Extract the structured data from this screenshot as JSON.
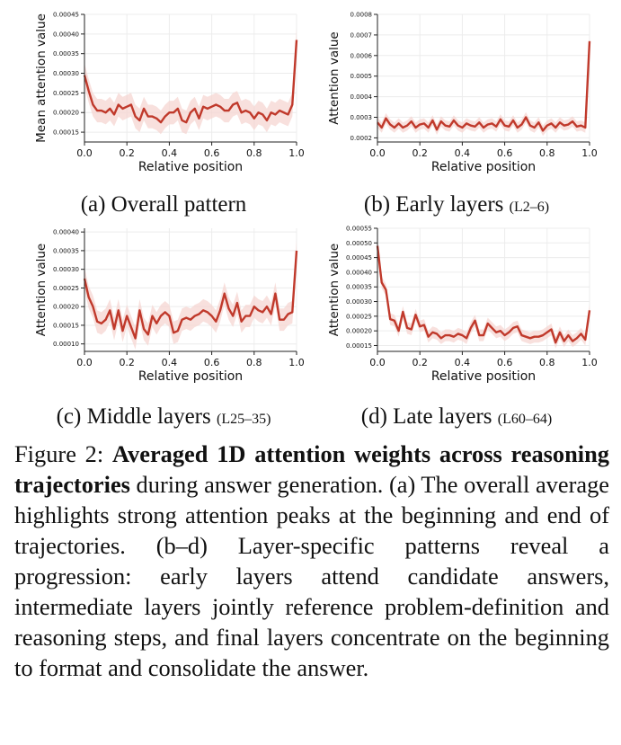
{
  "panels": [
    {
      "id": "a",
      "caption": "(a) Overall pattern",
      "caption_range": "",
      "chart_data": {
        "type": "line",
        "ylabel": "Mean attention value",
        "xlabel": "Relative position",
        "xlim": [
          0.0,
          1.0
        ],
        "ylim": [
          0.000125,
          0.00045
        ],
        "xticks": [
          "0.0",
          "0.2",
          "0.4",
          "0.6",
          "0.8",
          "1.0"
        ],
        "yticks": [
          "0.00015",
          "0.00020",
          "0.00025",
          "0.00030",
          "0.00035",
          "0.00040",
          "0.00045"
        ],
        "ytick_values": [
          0.00015,
          0.0002,
          0.00025,
          0.0003,
          0.00035,
          0.0004,
          0.00045
        ],
        "grid": true,
        "color": "#c0392b",
        "band_color": "#f6d5d2",
        "series": [
          {
            "x": [
              0.0,
              0.02,
              0.04,
              0.06,
              0.08,
              0.1,
              0.12,
              0.14,
              0.16,
              0.18,
              0.2,
              0.22,
              0.24,
              0.26,
              0.28,
              0.3,
              0.32,
              0.34,
              0.36,
              0.38,
              0.4,
              0.42,
              0.44,
              0.46,
              0.48,
              0.5,
              0.52,
              0.54,
              0.56,
              0.58,
              0.6,
              0.62,
              0.64,
              0.66,
              0.68,
              0.7,
              0.72,
              0.74,
              0.76,
              0.78,
              0.8,
              0.82,
              0.84,
              0.86,
              0.88,
              0.9,
              0.92,
              0.94,
              0.96,
              0.98,
              1.0
            ],
            "y": [
              0.000295,
              0.000255,
              0.00022,
              0.000205,
              0.000205,
              0.0002,
              0.00021,
              0.000195,
              0.00022,
              0.00021,
              0.000215,
              0.00022,
              0.00019,
              0.00018,
              0.00021,
              0.00019,
              0.00019,
              0.000185,
              0.000175,
              0.00019,
              0.0002,
              0.0002,
              0.00021,
              0.00018,
              0.000175,
              0.0002,
              0.00021,
              0.000185,
              0.000215,
              0.00021,
              0.000215,
              0.00022,
              0.000215,
              0.000205,
              0.000205,
              0.00022,
              0.000225,
              0.0002,
              0.000205,
              0.0002,
              0.000185,
              0.0002,
              0.000195,
              0.00018,
              0.0002,
              0.000195,
              0.000205,
              0.0002,
              0.000195,
              0.00022,
              0.000385
            ],
            "spread": 3e-05
          }
        ]
      }
    },
    {
      "id": "b",
      "caption": "(b) Early layers",
      "caption_range": "(L2–6)",
      "chart_data": {
        "type": "line",
        "ylabel": "Attention value",
        "xlabel": "Relative position",
        "xlim": [
          0.0,
          1.0
        ],
        "ylim": [
          0.00018,
          0.0008
        ],
        "xticks": [
          "0.0",
          "0.2",
          "0.4",
          "0.6",
          "0.8",
          "1.0"
        ],
        "yticks": [
          "0.0002",
          "0.0003",
          "0.0004",
          "0.0005",
          "0.0006",
          "0.0007",
          "0.0008"
        ],
        "ytick_values": [
          0.0002,
          0.0003,
          0.0004,
          0.0005,
          0.0006,
          0.0007,
          0.0008
        ],
        "grid": true,
        "color": "#c0392b",
        "band_color": "#f6d5d2",
        "series": [
          {
            "x": [
              0.0,
              0.02,
              0.04,
              0.06,
              0.08,
              0.1,
              0.12,
              0.14,
              0.16,
              0.18,
              0.2,
              0.22,
              0.24,
              0.26,
              0.28,
              0.3,
              0.32,
              0.34,
              0.36,
              0.38,
              0.4,
              0.42,
              0.44,
              0.46,
              0.48,
              0.5,
              0.52,
              0.54,
              0.56,
              0.58,
              0.6,
              0.62,
              0.64,
              0.66,
              0.68,
              0.7,
              0.72,
              0.74,
              0.76,
              0.78,
              0.8,
              0.82,
              0.84,
              0.86,
              0.88,
              0.9,
              0.92,
              0.94,
              0.96,
              0.98,
              1.0
            ],
            "y": [
              0.000275,
              0.00025,
              0.000295,
              0.000265,
              0.00025,
              0.00027,
              0.00025,
              0.00026,
              0.00028,
              0.00025,
              0.000265,
              0.00027,
              0.00025,
              0.000285,
              0.00024,
              0.00028,
              0.00026,
              0.000255,
              0.000285,
              0.00026,
              0.00025,
              0.00027,
              0.00026,
              0.000255,
              0.000275,
              0.00025,
              0.000265,
              0.00027,
              0.000255,
              0.00029,
              0.00026,
              0.000255,
              0.000285,
              0.00025,
              0.000265,
              0.0003,
              0.00026,
              0.00025,
              0.000275,
              0.000235,
              0.00026,
              0.00027,
              0.00025,
              0.000275,
              0.00026,
              0.000265,
              0.00028,
              0.000255,
              0.00026,
              0.00025,
              0.00067
            ],
            "spread": 2.5e-05
          }
        ]
      }
    },
    {
      "id": "c",
      "caption": "(c) Middle layers",
      "caption_range": "(L25–35)",
      "chart_data": {
        "type": "line",
        "ylabel": "Attention value",
        "xlabel": "Relative position",
        "xlim": [
          0.0,
          1.0
        ],
        "ylim": [
          8e-05,
          0.00041
        ],
        "xticks": [
          "0.0",
          "0.2",
          "0.4",
          "0.6",
          "0.8",
          "1.0"
        ],
        "yticks": [
          "0.00010",
          "0.00015",
          "0.00020",
          "0.00025",
          "0.00030",
          "0.00035",
          "0.00040"
        ],
        "ytick_values": [
          0.0001,
          0.00015,
          0.0002,
          0.00025,
          0.0003,
          0.00035,
          0.0004
        ],
        "grid": true,
        "color": "#c0392b",
        "band_color": "#f6d5d2",
        "series": [
          {
            "x": [
              0.0,
              0.02,
              0.04,
              0.06,
              0.08,
              0.1,
              0.12,
              0.14,
              0.16,
              0.18,
              0.2,
              0.22,
              0.24,
              0.26,
              0.28,
              0.3,
              0.32,
              0.34,
              0.36,
              0.38,
              0.4,
              0.42,
              0.44,
              0.46,
              0.48,
              0.5,
              0.52,
              0.54,
              0.56,
              0.58,
              0.6,
              0.62,
              0.64,
              0.66,
              0.68,
              0.7,
              0.72,
              0.74,
              0.76,
              0.78,
              0.8,
              0.82,
              0.84,
              0.86,
              0.88,
              0.9,
              0.92,
              0.94,
              0.96,
              0.98,
              1.0
            ],
            "y": [
              0.000275,
              0.000225,
              0.0002,
              0.00016,
              0.000155,
              0.000165,
              0.00019,
              0.00014,
              0.00019,
              0.000135,
              0.000175,
              0.000145,
              0.000115,
              0.00019,
              0.00014,
              0.000125,
              0.000175,
              0.000155,
              0.000175,
              0.000185,
              0.000175,
              0.00013,
              0.000135,
              0.000165,
              0.00017,
              0.000165,
              0.000175,
              0.00018,
              0.00019,
              0.000185,
              0.000175,
              0.00016,
              0.00019,
              0.000235,
              0.000195,
              0.000175,
              0.00021,
              0.00016,
              0.000175,
              0.000175,
              0.0002,
              0.00019,
              0.000185,
              0.0002,
              0.00018,
              0.000235,
              0.000165,
              0.000165,
              0.00018,
              0.000185,
              0.00035
            ],
            "spread": 3e-05
          }
        ]
      }
    },
    {
      "id": "d",
      "caption": "(d) Late layers",
      "caption_range": "(L60–64)",
      "chart_data": {
        "type": "line",
        "ylabel": "Attention value",
        "xlabel": "Relative position",
        "xlim": [
          0.0,
          1.0
        ],
        "ylim": [
          0.00013,
          0.00055
        ],
        "xticks": [
          "0.0",
          "0.2",
          "0.4",
          "0.6",
          "0.8",
          "1.0"
        ],
        "yticks": [
          "0.00015",
          "0.00020",
          "0.00025",
          "0.00030",
          "0.00035",
          "0.00040",
          "0.00045",
          "0.00050",
          "0.00055"
        ],
        "ytick_values": [
          0.00015,
          0.0002,
          0.00025,
          0.0003,
          0.00035,
          0.0004,
          0.00045,
          0.0005,
          0.00055
        ],
        "grid": true,
        "color": "#c0392b",
        "band_color": "#f6d5d2",
        "series": [
          {
            "x": [
              0.0,
              0.02,
              0.04,
              0.06,
              0.08,
              0.1,
              0.12,
              0.14,
              0.16,
              0.18,
              0.2,
              0.22,
              0.24,
              0.26,
              0.28,
              0.3,
              0.32,
              0.34,
              0.36,
              0.38,
              0.4,
              0.42,
              0.44,
              0.46,
              0.48,
              0.5,
              0.52,
              0.54,
              0.56,
              0.58,
              0.6,
              0.62,
              0.64,
              0.66,
              0.68,
              0.7,
              0.72,
              0.74,
              0.76,
              0.78,
              0.8,
              0.82,
              0.84,
              0.86,
              0.88,
              0.9,
              0.92,
              0.94,
              0.96,
              0.98,
              1.0
            ],
            "y": [
              0.00049,
              0.000365,
              0.00034,
              0.00024,
              0.000235,
              0.0002,
              0.000265,
              0.00021,
              0.000205,
              0.000255,
              0.000215,
              0.00022,
              0.00018,
              0.000195,
              0.00019,
              0.000175,
              0.000185,
              0.000185,
              0.00018,
              0.00019,
              0.000185,
              0.000175,
              0.00021,
              0.000235,
              0.000185,
              0.000185,
              0.000225,
              0.00021,
              0.000195,
              0.0002,
              0.000185,
              0.000195,
              0.00021,
              0.000215,
              0.000185,
              0.00018,
              0.000175,
              0.00018,
              0.00018,
              0.000185,
              0.000195,
              0.000205,
              0.00016,
              0.000195,
              0.000165,
              0.000185,
              0.000165,
              0.000175,
              0.00019,
              0.00017,
              0.00027
            ],
            "spread": 2e-05
          }
        ]
      }
    }
  ],
  "figure_caption": {
    "lead": "Figure 2: ",
    "bold": "Averaged 1D attention weights across reasoning trajectories",
    "rest": " during answer generation. (a) The overall average highlights strong attention peaks at the beginning and end of trajectories. (b–d) Layer-specific patterns reveal a progression: early layers attend candidate answers, intermediate layers jointly reference problem-definition and reasoning steps, and final layers concentrate on the beginning to format and consolidate the answer."
  }
}
